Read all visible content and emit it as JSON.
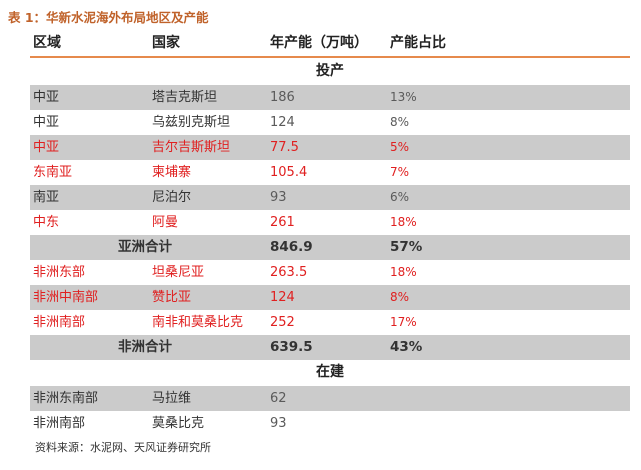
{
  "title": "表 1：华新水泥海外布局地区及产能",
  "header": [
    "区域",
    "国家",
    "年产能（万吨）",
    "产能占比"
  ],
  "sections": [
    {
      "title": "投产",
      "rows": [
        {
          "region": "中亚",
          "country": "塔吉克斯坦",
          "capacity": 186,
          "share": "13%",
          "color": "#5a5a5a"
        },
        {
          "region": "中亚",
          "country": "乌兹别克斯坦",
          "capacity": 124,
          "share": "8%",
          "color": "#5a5a5a"
        },
        {
          "region": "中亚",
          "country": "吉尔吉斯斯坦",
          "capacity": 77.5,
          "share": "5%",
          "color": "#e02020"
        },
        {
          "region": "东南亚",
          "country": "柬埔寨",
          "capacity": 105.4,
          "share": "7%",
          "color": "#e02020"
        },
        {
          "region": "南亚",
          "country": "尼泊尔",
          "capacity": 93,
          "share": "6%",
          "color": "#5a5a5a"
        },
        {
          "region": "中东",
          "country": "阿曼",
          "capacity": 261,
          "share": "18%",
          "color": "#e02020"
        },
        {
          "total_label": "亚洲合计",
          "capacity": 846.9,
          "share": "57%"
        },
        {
          "region": "非洲东部",
          "country": "坦桑尼亚",
          "capacity": 263.5,
          "share": "18%",
          "color": "#e02020"
        },
        {
          "region": "非洲中南部",
          "country": "赞比亚",
          "capacity": 124,
          "share": "8%",
          "color": "#e02020"
        },
        {
          "region": "非洲南部",
          "country": "南非和莫桑比克",
          "capacity": 252,
          "share": "17%",
          "color": "#e02020"
        },
        {
          "total_label": "非洲合计",
          "capacity": 639.5,
          "share": "43%"
        }
      ]
    },
    {
      "title": "在建",
      "rows": [
        {
          "region": "非洲东南部",
          "country": "马拉维",
          "capacity": 62,
          "color": "#5a5a5a"
        },
        {
          "region": "非洲南部",
          "country": "莫桑比克",
          "capacity": 93,
          "color": "#5a5a5a"
        }
      ]
    }
  ],
  "footnote": "资料来源：水泥网、天风证券研究所"
}
